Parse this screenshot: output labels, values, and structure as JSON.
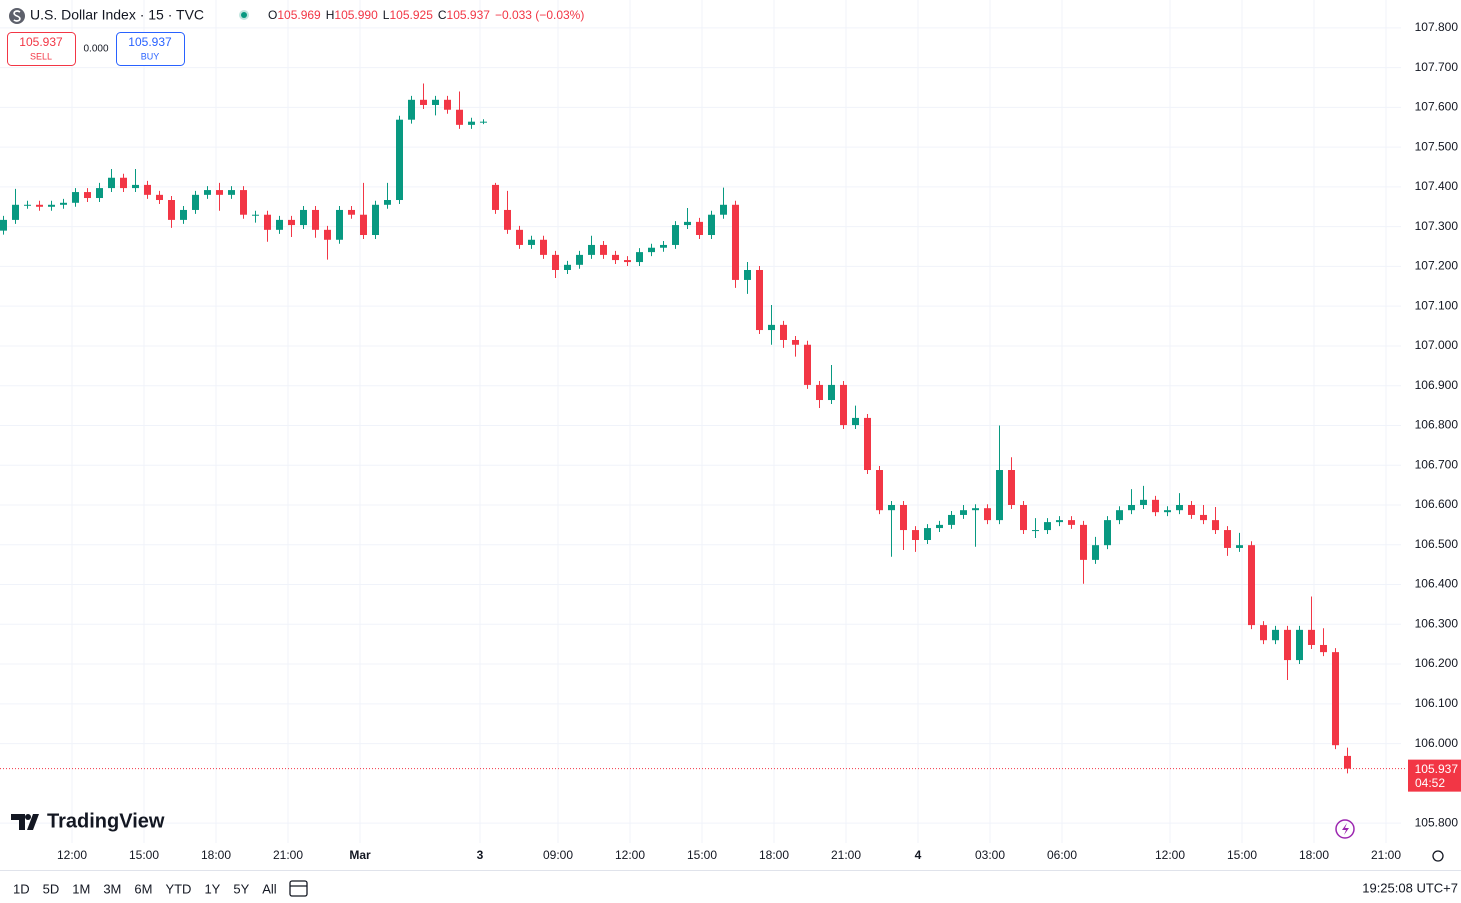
{
  "header": {
    "symbol": "U.S. Dollar Index · 15 · TVC",
    "ohlc": [
      {
        "key": "O",
        "value": "105.969"
      },
      {
        "key": "H",
        "value": "105.990"
      },
      {
        "key": "L",
        "value": "105.925"
      },
      {
        "key": "C",
        "value": "105.937"
      }
    ],
    "change": "−0.033 (−0.03%)",
    "sell_price": "105.937",
    "sell": "SELL",
    "spread": "0.000",
    "buy_price": "105.937",
    "buy": "BUY"
  },
  "watermark": "TradingView",
  "toolbar": {
    "ranges": [
      "1D",
      "5D",
      "1M",
      "3M",
      "6M",
      "YTD",
      "1Y",
      "5Y",
      "All"
    ],
    "clock": "19:25:08 UTC+7"
  },
  "chart_data": {
    "type": "candlestick",
    "up_color": "#089981",
    "down_color": "#f23645",
    "grid": true,
    "ylim": [
      105.75,
      107.87
    ],
    "yticks": [
      {
        "value": 105.8,
        "label": "105.800"
      },
      {
        "value": 106.0,
        "label": "106.000"
      },
      {
        "value": 106.1,
        "label": "106.100"
      },
      {
        "value": 106.2,
        "label": "106.200"
      },
      {
        "value": 106.3,
        "label": "106.300"
      },
      {
        "value": 106.4,
        "label": "106.400"
      },
      {
        "value": 106.5,
        "label": "106.500"
      },
      {
        "value": 106.6,
        "label": "106.600"
      },
      {
        "value": 106.7,
        "label": "106.700"
      },
      {
        "value": 106.8,
        "label": "106.800"
      },
      {
        "value": 106.9,
        "label": "106.900"
      },
      {
        "value": 107.0,
        "label": "107.000"
      },
      {
        "value": 107.1,
        "label": "107.100"
      },
      {
        "value": 107.2,
        "label": "107.200"
      },
      {
        "value": 107.3,
        "label": "107.300"
      },
      {
        "value": 107.4,
        "label": "107.400"
      },
      {
        "value": 107.5,
        "label": "107.500"
      },
      {
        "value": 107.6,
        "label": "107.600"
      },
      {
        "value": 107.7,
        "label": "107.700"
      },
      {
        "value": 107.8,
        "label": "107.800"
      }
    ],
    "xlim": [
      -0.25,
      116.5
    ],
    "xticks": [
      {
        "value": 5.75,
        "label": "12:00"
      },
      {
        "value": 11.75,
        "label": "15:00"
      },
      {
        "value": 17.75,
        "label": "18:00"
      },
      {
        "value": 23.75,
        "label": "21:00"
      },
      {
        "value": 29.75,
        "label": "Mar"
      },
      {
        "value": 39.75,
        "label": "3"
      },
      {
        "value": 46.25,
        "label": "09:00"
      },
      {
        "value": 52.25,
        "label": "12:00"
      },
      {
        "value": 58.25,
        "label": "15:00"
      },
      {
        "value": 64.25,
        "label": "18:00"
      },
      {
        "value": 70.25,
        "label": "21:00"
      },
      {
        "value": 76.25,
        "label": "4"
      },
      {
        "value": 82.25,
        "label": "03:00"
      },
      {
        "value": 88.25,
        "label": "06:00"
      },
      {
        "value": 97.25,
        "label": "12:00"
      },
      {
        "value": 103.25,
        "label": "15:00"
      },
      {
        "value": 109.25,
        "label": "18:00"
      },
      {
        "value": 115.25,
        "label": "21:00"
      }
    ],
    "last_price": {
      "value": 105.937,
      "label": "105.937"
    },
    "countdown": "04:52",
    "open": [
      107.29,
      107.317,
      107.355,
      107.355,
      107.35,
      107.355,
      107.36,
      107.387,
      107.372,
      107.397,
      107.423,
      107.397,
      107.405,
      107.38,
      107.367,
      107.317,
      107.342,
      107.38,
      107.392,
      107.38,
      107.392,
      107.33,
      107.33,
      107.292,
      107.317,
      107.304,
      107.342,
      107.292,
      107.267,
      107.342,
      107.33,
      107.279,
      107.355,
      107.367,
      107.569,
      107.619,
      107.606,
      107.619,
      107.594,
      107.556,
      107.564,
      107.405,
      107.342,
      107.292,
      107.254,
      107.267,
      107.229,
      107.191,
      107.204,
      107.229,
      107.254,
      107.229,
      107.216,
      107.211,
      107.236,
      107.247,
      107.254,
      107.304,
      107.312,
      107.279,
      107.33,
      107.355,
      107.166,
      107.191,
      107.04,
      107.053,
      107.015,
      107.003,
      106.902,
      106.864,
      106.902,
      106.801,
      106.819,
      106.688,
      106.587,
      106.6,
      106.537,
      106.512,
      106.542,
      106.55,
      106.575,
      106.587,
      106.592,
      106.562,
      106.688,
      106.6,
      106.537,
      106.537,
      106.557,
      106.562,
      106.55,
      106.462,
      106.499,
      106.562,
      106.587,
      106.6,
      106.613,
      106.582,
      106.587,
      106.6,
      106.575,
      106.562,
      106.537,
      106.492,
      106.499,
      106.298,
      106.26,
      106.286,
      106.21,
      106.286,
      106.248,
      106.23,
      105.969
    ],
    "high": [
      107.327,
      107.395,
      107.365,
      107.365,
      107.365,
      107.37,
      107.397,
      107.397,
      107.41,
      107.445,
      107.433,
      107.445,
      107.415,
      107.39,
      107.377,
      107.352,
      107.39,
      107.402,
      107.41,
      107.402,
      107.402,
      107.34,
      107.34,
      107.327,
      107.327,
      107.352,
      107.352,
      107.302,
      107.352,
      107.352,
      107.41,
      107.365,
      107.41,
      107.579,
      107.629,
      107.66,
      107.629,
      107.629,
      107.64,
      107.574,
      107.57,
      107.41,
      107.39,
      107.302,
      107.277,
      107.277,
      107.239,
      107.214,
      107.239,
      107.277,
      107.264,
      107.239,
      107.226,
      107.246,
      107.257,
      107.264,
      107.314,
      107.347,
      107.322,
      107.34,
      107.398,
      107.365,
      107.211,
      107.201,
      107.103,
      107.063,
      107.025,
      107.013,
      106.912,
      106.952,
      106.912,
      106.85,
      106.829,
      106.698,
      106.61,
      106.61,
      106.547,
      106.552,
      106.56,
      106.585,
      106.6,
      106.602,
      106.602,
      106.8,
      106.72,
      106.61,
      106.567,
      106.567,
      106.572,
      106.572,
      106.56,
      106.52,
      106.572,
      106.597,
      106.64,
      106.648,
      106.623,
      106.597,
      106.63,
      106.61,
      106.6,
      106.595,
      106.547,
      106.53,
      106.509,
      106.308,
      106.296,
      106.296,
      106.296,
      106.37,
      106.29,
      106.24,
      105.99
    ],
    "low": [
      107.28,
      107.307,
      107.345,
      107.34,
      107.34,
      107.345,
      107.35,
      107.362,
      107.362,
      107.387,
      107.387,
      107.387,
      107.37,
      107.357,
      107.297,
      107.307,
      107.332,
      107.37,
      107.34,
      107.37,
      107.32,
      107.31,
      107.262,
      107.282,
      107.274,
      107.294,
      107.272,
      107.217,
      107.257,
      107.32,
      107.269,
      107.269,
      107.345,
      107.357,
      107.559,
      107.596,
      107.58,
      107.584,
      107.546,
      107.546,
      107.558,
      107.332,
      107.282,
      107.244,
      107.244,
      107.219,
      107.171,
      107.181,
      107.194,
      107.219,
      107.219,
      107.206,
      107.201,
      107.201,
      107.226,
      107.237,
      107.244,
      107.294,
      107.269,
      107.269,
      107.32,
      107.146,
      107.131,
      107.03,
      107.003,
      106.995,
      106.973,
      106.892,
      106.844,
      106.854,
      106.791,
      106.791,
      106.678,
      106.577,
      106.47,
      106.487,
      106.482,
      106.502,
      106.532,
      106.54,
      106.565,
      106.495,
      106.552,
      106.552,
      106.59,
      106.527,
      106.517,
      106.527,
      106.547,
      106.54,
      106.402,
      106.452,
      106.489,
      106.552,
      106.577,
      106.59,
      106.572,
      106.572,
      106.577,
      106.565,
      106.552,
      106.527,
      106.472,
      106.482,
      106.288,
      106.25,
      106.25,
      106.16,
      106.2,
      106.238,
      106.22,
      105.986,
      105.925
    ],
    "close": [
      107.317,
      107.355,
      107.355,
      107.35,
      107.355,
      107.36,
      107.387,
      107.372,
      107.397,
      107.423,
      107.397,
      107.405,
      107.38,
      107.367,
      107.317,
      107.342,
      107.38,
      107.392,
      107.38,
      107.392,
      107.33,
      107.33,
      107.292,
      107.317,
      107.304,
      107.342,
      107.292,
      107.267,
      107.342,
      107.33,
      107.279,
      107.355,
      107.367,
      107.569,
      107.619,
      107.606,
      107.619,
      107.594,
      107.556,
      107.564,
      107.564,
      107.342,
      107.292,
      107.254,
      107.267,
      107.229,
      107.191,
      107.204,
      107.229,
      107.254,
      107.229,
      107.216,
      107.211,
      107.236,
      107.247,
      107.254,
      107.304,
      107.312,
      107.279,
      107.33,
      107.355,
      107.166,
      107.191,
      107.04,
      107.053,
      107.015,
      107.003,
      106.902,
      106.864,
      106.902,
      106.801,
      106.819,
      106.688,
      106.587,
      106.6,
      106.537,
      106.512,
      106.542,
      106.55,
      106.575,
      106.587,
      106.592,
      106.562,
      106.688,
      106.6,
      106.537,
      106.537,
      106.557,
      106.562,
      106.55,
      106.462,
      106.499,
      106.562,
      106.587,
      106.6,
      106.613,
      106.582,
      106.587,
      106.6,
      106.575,
      106.562,
      106.537,
      106.492,
      106.499,
      106.298,
      106.26,
      106.286,
      106.21,
      106.286,
      106.248,
      106.23,
      105.996,
      105.937
    ]
  }
}
